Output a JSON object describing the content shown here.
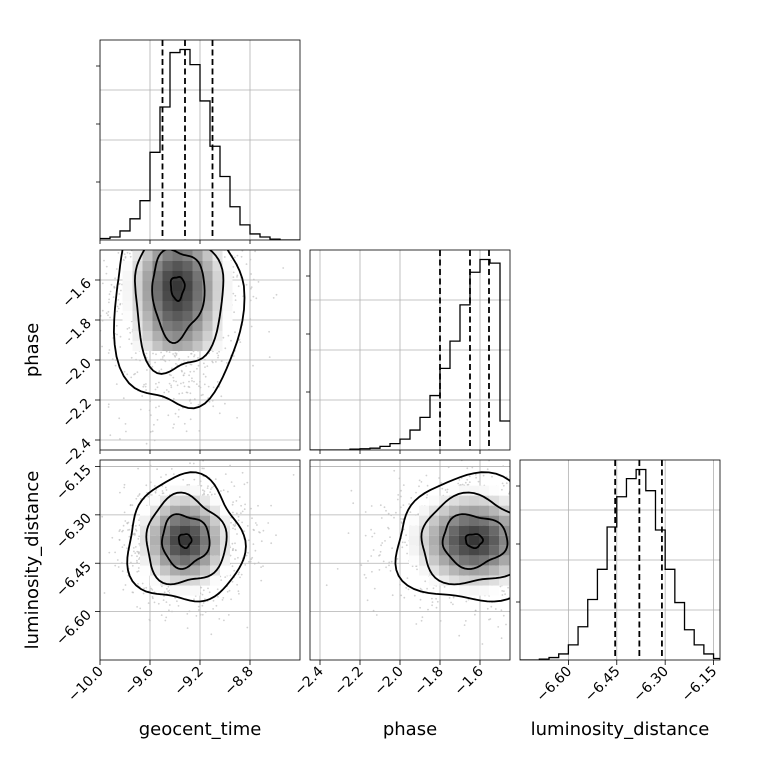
{
  "chart_data": {
    "type": "corner",
    "parameters": [
      {
        "name": "geocent_time",
        "label": "geocent_time",
        "range": [
          -10.0,
          -8.4
        ],
        "ticks": [
          -10.0,
          -9.6,
          -9.2,
          -8.8
        ],
        "tick_labels": [
          "−10.0",
          "−9.6",
          "−9.2",
          "−8.8"
        ],
        "quantiles": [
          -9.5,
          -9.32,
          -9.1
        ],
        "histogram": {
          "edges": [
            -10.0,
            -9.92,
            -9.84,
            -9.76,
            -9.68,
            -9.6,
            -9.52,
            -9.44,
            -9.36,
            -9.28,
            -9.2,
            -9.12,
            -9.04,
            -8.96,
            -8.88,
            -8.8,
            -8.72,
            -8.64,
            -8.56,
            -8.48,
            -8.4
          ],
          "counts": [
            0.5,
            1,
            3,
            7,
            13,
            29,
            44,
            62,
            63,
            58,
            46,
            31,
            21,
            11,
            5,
            2,
            1,
            0.3,
            0,
            0
          ]
        }
      },
      {
        "name": "phase",
        "label": "phase",
        "range": [
          -2.45,
          -1.45
        ],
        "ticks": [
          -2.4,
          -2.2,
          -2.0,
          -1.8,
          -1.6
        ],
        "tick_labels": [
          "−2.4",
          "−2.2",
          "−2.0",
          "−1.8",
          "−1.6"
        ],
        "quantiles": [
          -1.8,
          -1.65,
          -1.555
        ],
        "histogram": {
          "edges": [
            -2.45,
            -2.4,
            -2.35,
            -2.3,
            -2.25,
            -2.2,
            -2.15,
            -2.1,
            -2.05,
            -2.0,
            -1.95,
            -1.9,
            -1.85,
            -1.8,
            -1.75,
            -1.7,
            -1.65,
            -1.6,
            -1.55,
            -1.5,
            -1.45
          ],
          "counts": [
            0,
            0,
            0,
            0,
            0.5,
            0.7,
            1,
            2,
            3.5,
            6,
            11,
            18,
            30,
            45,
            60,
            80,
            98,
            105,
            103,
            16
          ]
        }
      },
      {
        "name": "luminosity_distance",
        "label": "luminosity_distance",
        "range": [
          -6.75,
          -6.13
        ],
        "ticks": [
          -6.6,
          -6.45,
          -6.3,
          -6.15
        ],
        "tick_labels": [
          "−6.60",
          "−6.45",
          "−6.30",
          "−6.15"
        ],
        "quantiles": [
          -6.455,
          -6.38,
          -6.31
        ],
        "histogram": {
          "edges": [
            -6.75,
            -6.72,
            -6.69,
            -6.66,
            -6.63,
            -6.6,
            -6.57,
            -6.54,
            -6.51,
            -6.48,
            -6.45,
            -6.42,
            -6.39,
            -6.36,
            -6.33,
            -6.3,
            -6.27,
            -6.24,
            -6.21,
            -6.18,
            -6.15,
            -6.13
          ],
          "counts": [
            0,
            0,
            0.3,
            0.8,
            2,
            5,
            11,
            20,
            30,
            44,
            54,
            60,
            63,
            56,
            43,
            30,
            19,
            10,
            5,
            2,
            0.5
          ]
        }
      }
    ],
    "joint": [
      {
        "x": "geocent_time",
        "y": "phase",
        "center": [
          -9.38,
          -1.63
        ],
        "spread": [
          0.22,
          0.19
        ],
        "skew_lower": true,
        "levels": [
          0.18,
          0.14,
          0.1,
          0.06
        ]
      },
      {
        "x": "geocent_time",
        "y": "luminosity_distance",
        "center": [
          -9.32,
          -6.38
        ],
        "spread": [
          0.2,
          0.085
        ],
        "skew_lower": false,
        "levels": [
          0.2,
          0.15,
          0.1,
          0.05
        ]
      },
      {
        "x": "phase",
        "y": "luminosity_distance",
        "center": [
          -1.63,
          -6.38
        ],
        "spread": [
          0.17,
          0.085
        ],
        "skew_lower": false,
        "levels": [
          0.2,
          0.15,
          0.1,
          0.05
        ]
      }
    ],
    "grid": true,
    "legend": "none"
  }
}
